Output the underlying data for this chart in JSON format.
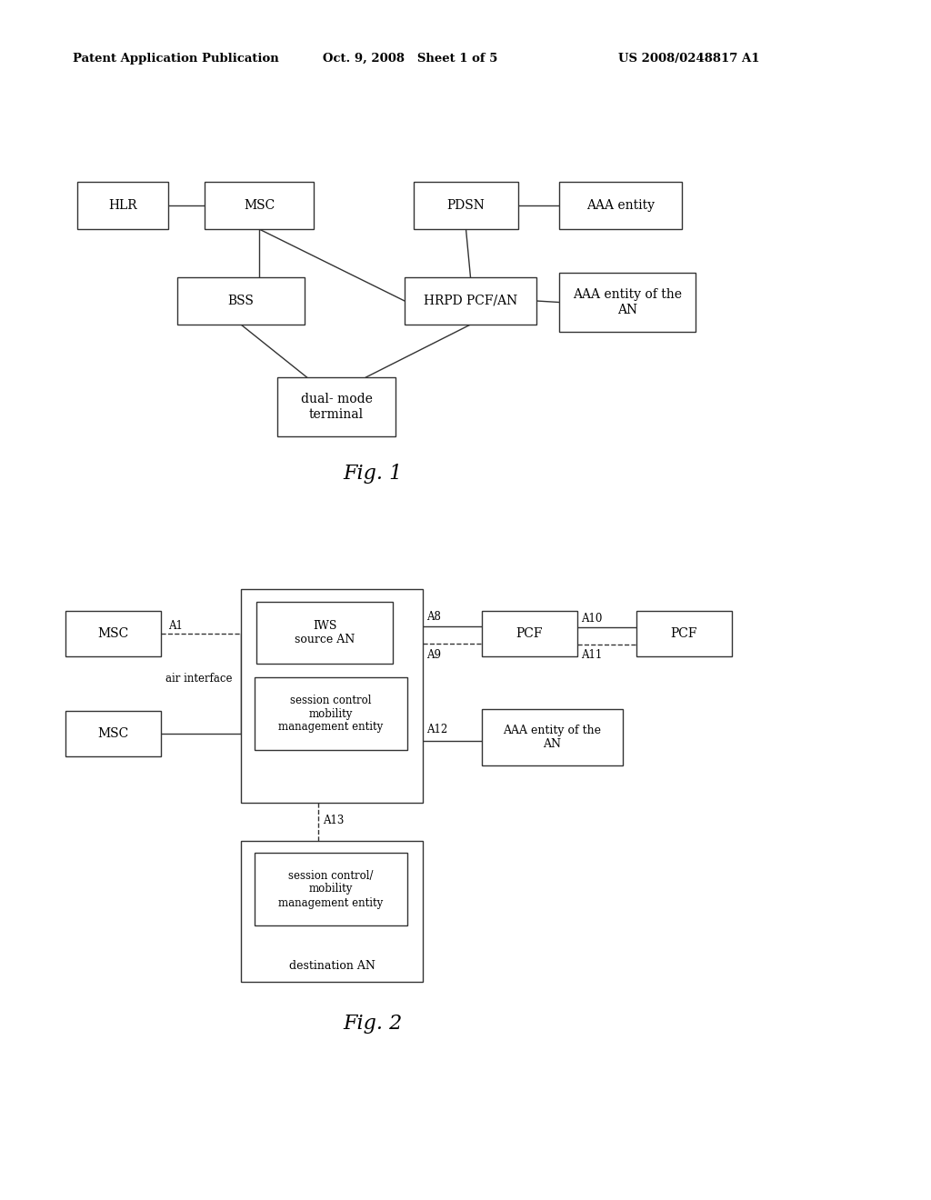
{
  "bg_color": "#ffffff",
  "header_left": "Patent Application Publication",
  "header_mid": "Oct. 9, 2008   Sheet 1 of 5",
  "header_right": "US 2008/0248817 A1",
  "fig1_label": "Fig. 1",
  "fig2_label": "Fig. 2"
}
